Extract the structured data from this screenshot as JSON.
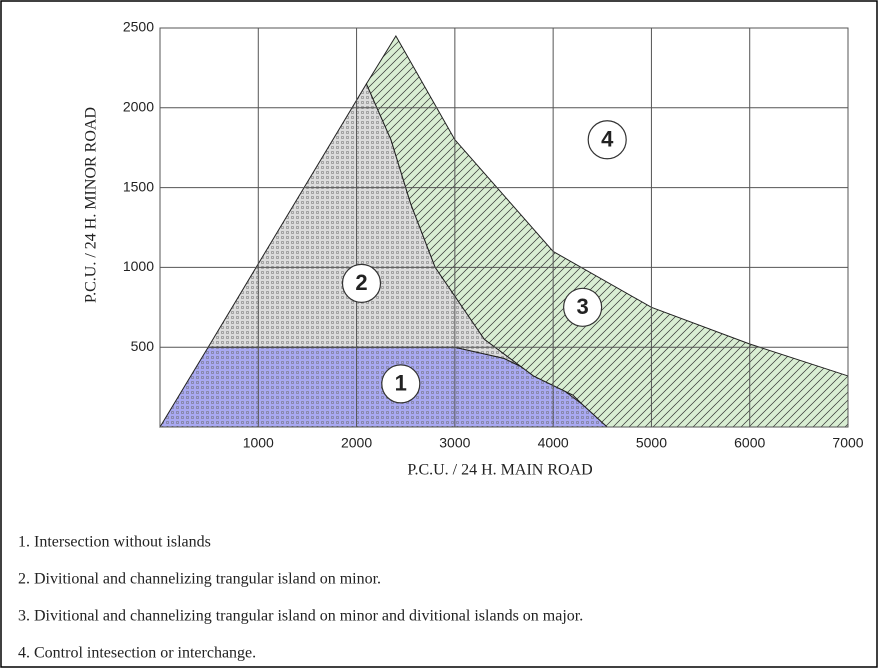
{
  "chart_data": {
    "type": "region",
    "xlabel": "P.C.U. / 24 H. MAIN ROAD",
    "ylabel": "P.C.U. / 24 H. MINOR ROAD",
    "xlim": [
      0,
      7000
    ],
    "ylim": [
      0,
      2500
    ],
    "xticks": [
      1000,
      2000,
      3000,
      4000,
      5000,
      6000,
      7000
    ],
    "yticks": [
      500,
      1000,
      1500,
      2000,
      2500
    ],
    "grid": true,
    "regions": [
      {
        "name": "1",
        "color": "#a9a9f2",
        "pattern": "dots",
        "x": [
          0,
          490,
          3000,
          3500,
          4000,
          4300,
          4550
        ],
        "y": [
          0,
          500,
          500,
          430,
          280,
          140,
          0
        ]
      },
      {
        "name": "2",
        "color": "#dcdcdc",
        "pattern": "dots",
        "x": [
          490,
          2100,
          2350,
          2550,
          2800,
          3300,
          3800,
          4200,
          4000,
          3500,
          3000
        ],
        "y": [
          500,
          2150,
          1800,
          1400,
          1000,
          550,
          320,
          200,
          280,
          430,
          500
        ]
      },
      {
        "name": "3",
        "color": "#d9eed3",
        "pattern": "hatch",
        "x": [
          2100,
          2400,
          3000,
          4000,
          5000,
          6000,
          7000,
          7000,
          4550,
          4300,
          4200,
          3800,
          3300,
          2800,
          2550,
          2350
        ],
        "y": [
          2150,
          2450,
          1800,
          1100,
          750,
          520,
          320,
          0,
          0,
          140,
          200,
          320,
          550,
          1000,
          1400,
          1800
        ]
      }
    ],
    "annotations": [
      {
        "text": "1",
        "x": 2450,
        "y": 270
      },
      {
        "text": "2",
        "x": 2050,
        "y": 900
      },
      {
        "text": "3",
        "x": 4300,
        "y": 750
      },
      {
        "text": "4",
        "x": 4550,
        "y": 1800
      }
    ],
    "notes": [
      "1. Intersection without islands",
      "2. Divitional and channelizing trangular island on minor.",
      "3. Divitional and channelizing trangular island on minor and divitional islands on major.",
      "4. Control intesection or interchange."
    ]
  }
}
